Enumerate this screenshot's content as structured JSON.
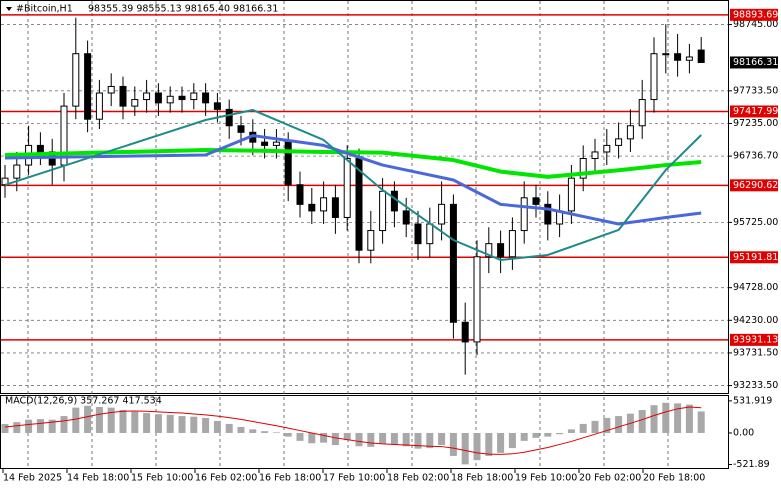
{
  "header": {
    "symbol": "#Bitcoin,H1",
    "ohlc": "98355.39 98555.13 98165.40 98166.31"
  },
  "time_labels": [
    "14 Feb 2025",
    "14 Feb 18:00",
    "15 Feb 10:00",
    "16 Feb 02:00",
    "16 Feb 18:00",
    "17 Feb 10:00",
    "18 Feb 02:00",
    "18 Feb 18:00",
    "19 Feb 10:00",
    "20 Feb 02:00",
    "20 Feb 18:00"
  ],
  "chart_data": [
    {
      "type": "candlestick",
      "open": [
        96300,
        96400,
        96600,
        96900,
        96800,
        96600,
        97500,
        98300,
        97300,
        97700,
        97800,
        97500,
        97600,
        97700,
        97550,
        97650,
        97600,
        97700,
        97550,
        97450,
        97200,
        97100,
        96950,
        96900,
        96950,
        96300,
        96000,
        95900,
        96100,
        95800,
        96700,
        95300,
        95600,
        96200,
        95900,
        95700,
        95400,
        95700,
        96000,
        94200,
        93900,
        95200,
        95400,
        95200,
        95600,
        96100,
        96000,
        95700,
        95900,
        96400,
        96700,
        96800,
        96900,
        97000,
        97200,
        97600,
        98300,
        98300,
        98200,
        98355.39
      ],
      "high": [
        96600,
        96800,
        97200,
        97100,
        97000,
        97700,
        98850,
        98500,
        97900,
        98000,
        97950,
        97800,
        97900,
        97850,
        97800,
        97800,
        97850,
        97850,
        97700,
        97600,
        97350,
        97300,
        97150,
        97150,
        97100,
        96500,
        96250,
        96350,
        96300,
        96900,
        96850,
        95900,
        96400,
        96350,
        96100,
        95900,
        95950,
        96350,
        96150,
        94500,
        95450,
        95650,
        95600,
        95800,
        96350,
        96300,
        96200,
        96150,
        96600,
        96900,
        97000,
        97150,
        97250,
        97450,
        97900,
        98550,
        98750,
        98600,
        98450,
        98555.13
      ],
      "low": [
        96100,
        96200,
        96450,
        96600,
        96300,
        96350,
        97300,
        97100,
        97150,
        97500,
        97300,
        97350,
        97400,
        97350,
        97400,
        97400,
        97450,
        97350,
        97250,
        97000,
        96900,
        96750,
        96700,
        96700,
        96050,
        95800,
        95700,
        95700,
        95550,
        95600,
        95100,
        95100,
        95400,
        95650,
        95500,
        95150,
        95200,
        95450,
        93950,
        93400,
        93700,
        94950,
        94950,
        95000,
        95400,
        95800,
        95450,
        95500,
        95700,
        96200,
        96500,
        96600,
        96700,
        96800,
        97000,
        97400,
        98000,
        97950,
        98000,
        98165.4
      ],
      "close": [
        96400,
        96600,
        96900,
        96800,
        96600,
        97500,
        98300,
        97300,
        97700,
        97800,
        97500,
        97600,
        97700,
        97550,
        97650,
        97600,
        97700,
        97550,
        97450,
        97200,
        97100,
        96950,
        96900,
        96950,
        96300,
        96000,
        95900,
        96100,
        95800,
        96700,
        95300,
        95600,
        96200,
        95900,
        95700,
        95400,
        95700,
        96000,
        94200,
        93900,
        95200,
        95400,
        95200,
        95600,
        96100,
        96000,
        95700,
        95900,
        96400,
        96700,
        96800,
        96900,
        97000,
        97200,
        97600,
        98300,
        98300,
        98200,
        98250,
        98166.31
      ],
      "ylim": [
        93120,
        99120
      ],
      "yticks": [
        {
          "value": 98745,
          "label": "98745.00"
        },
        {
          "value": 97733.5,
          "label": "97733.50"
        },
        {
          "value": 97235,
          "label": "97235.00"
        },
        {
          "value": 96736.7,
          "label": "96736.70"
        },
        {
          "value": 95725,
          "label": "95725.00"
        },
        {
          "value": 94728,
          "label": "94728.00"
        },
        {
          "value": 94230,
          "label": "94230.00"
        },
        {
          "value": 93731.5,
          "label": "93731.50"
        },
        {
          "value": 93233.5,
          "label": "93233.50"
        }
      ],
      "levels": [
        98893.69,
        97417.99,
        96290.62,
        95191.81,
        93931.13
      ],
      "level_color": "#e00000",
      "last_price": 98166.31,
      "grid": true,
      "series": [
        {
          "color": "#00e600",
          "width": 4,
          "x": [
            0,
            17,
            21,
            27,
            32,
            38,
            42,
            46,
            52,
            56,
            59
          ],
          "values": [
            96754,
            96830,
            96820,
            96800,
            96790,
            96677,
            96500,
            96420,
            96520,
            96600,
            96647
          ]
        },
        {
          "color": "#4a68dc",
          "width": 3,
          "x": [
            0,
            17,
            21,
            27,
            32,
            38,
            42,
            46,
            52,
            56,
            59
          ],
          "values": [
            96708,
            96754,
            97050,
            96900,
            96600,
            96372,
            96000,
            95930,
            95700,
            95800,
            95868
          ]
        },
        {
          "color": "#1f8a8a",
          "width": 2,
          "x": [
            0,
            17,
            21,
            27,
            32,
            38,
            42,
            46,
            52,
            56,
            59
          ],
          "values": [
            96296,
            97288,
            97441,
            96983,
            96219,
            95456,
            95151,
            95227,
            95609,
            96525,
            97059
          ]
        }
      ]
    },
    {
      "type": "bar",
      "title": "MACD(12,26,9) 357.267 417.534",
      "color": "#a8a8a8",
      "values": [
        150,
        180,
        220,
        230,
        220,
        280,
        420,
        450,
        430,
        420,
        380,
        350,
        330,
        310,
        300,
        280,
        270,
        250,
        200,
        150,
        100,
        60,
        30,
        10,
        -60,
        -130,
        -170,
        -160,
        -200,
        -120,
        -220,
        -230,
        -180,
        -190,
        -220,
        -260,
        -250,
        -200,
        -380,
        -520,
        -450,
        -380,
        -330,
        -250,
        -130,
        -80,
        -60,
        -20,
        60,
        150,
        200,
        250,
        280,
        320,
        380,
        460,
        500,
        490,
        470,
        357.267
      ],
      "signal_color": "#e00000",
      "signal": [
        100,
        120,
        140,
        160,
        180,
        200,
        230,
        270,
        310,
        340,
        360,
        365,
        360,
        350,
        340,
        330,
        315,
        300,
        280,
        255,
        225,
        190,
        155,
        120,
        80,
        40,
        0,
        -40,
        -80,
        -110,
        -140,
        -165,
        -180,
        -190,
        -200,
        -210,
        -220,
        -225,
        -250,
        -290,
        -330,
        -350,
        -355,
        -345,
        -320,
        -280,
        -240,
        -190,
        -140,
        -80,
        -20,
        40,
        100,
        160,
        220,
        290,
        350,
        400,
        430,
        417.534
      ],
      "ylim": [
        -580,
        629
      ],
      "yticks": [
        531.919,
        {
          "value": 0,
          "label": "0.00"
        },
        -521.89
      ]
    }
  ]
}
